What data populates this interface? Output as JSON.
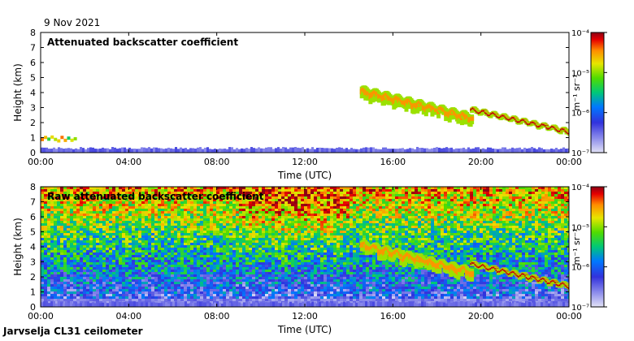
{
  "header": {
    "date": "9 Nov 2021",
    "station": "Jarvselja CL31 ceilometer"
  },
  "chart_data": [
    {
      "type": "heatmap",
      "title": "Attenuated backscatter coefficient",
      "xlabel": "Time (UTC)",
      "ylabel": "Height (km)",
      "x_tick_labels": [
        "00:00",
        "04:00",
        "08:00",
        "12:00",
        "16:00",
        "20:00",
        "00:00"
      ],
      "y_tick_labels": [
        "0",
        "1",
        "2",
        "3",
        "4",
        "5",
        "6",
        "7",
        "8"
      ],
      "xlim": [
        "00:00",
        "24:00"
      ],
      "ylim": [
        0,
        8
      ],
      "features": [
        {
          "kind": "cloud_layer",
          "time_start": "14:30",
          "time_end": "19:30",
          "height_start_km": 4.4,
          "height_end_km": 2.6
        },
        {
          "kind": "descending_cloud_layer",
          "time_start": "19:30",
          "time_end": "24:00",
          "height_start_km": 3.0,
          "height_end_km": 1.5
        },
        {
          "kind": "surface_layer",
          "height_km": 0.3,
          "time_start": "00:00",
          "time_end": "24:00"
        },
        {
          "kind": "low_cloud",
          "time_start": "00:00",
          "time_end": "01:30",
          "height_km": 1.0
        }
      ],
      "colorbar": {
        "label": "m⁻¹ sr⁻¹",
        "scale": "log",
        "range": [
          1e-07,
          0.0001
        ],
        "tick_labels": [
          "10⁻⁴",
          "10⁻⁵",
          "10⁻⁶",
          "10⁻⁷"
        ]
      }
    },
    {
      "type": "heatmap",
      "title": "Raw attenuated backscatter coefficient",
      "xlabel": "Time (UTC)",
      "ylabel": "Height (km)",
      "x_tick_labels": [
        "00:00",
        "04:00",
        "08:00",
        "12:00",
        "16:00",
        "20:00",
        "00:00"
      ],
      "y_tick_labels": [
        "0",
        "1",
        "2",
        "3",
        "4",
        "5",
        "6",
        "7",
        "8"
      ],
      "xlim": [
        "00:00",
        "24:00"
      ],
      "ylim": [
        0,
        8
      ],
      "features": [
        {
          "kind": "noise_background",
          "time_start": "00:00",
          "time_end": "24:00"
        },
        {
          "kind": "cloud_layer",
          "time_start": "14:30",
          "time_end": "19:30",
          "height_start_km": 4.4,
          "height_end_km": 2.6
        },
        {
          "kind": "descending_cloud_layer",
          "time_start": "19:30",
          "time_end": "24:00",
          "height_start_km": 3.0,
          "height_end_km": 1.5
        },
        {
          "kind": "surface_layer",
          "height_km": 0.3,
          "time_start": "00:00",
          "time_end": "24:00"
        }
      ],
      "colorbar": {
        "label": "m⁻¹ sr⁻¹",
        "scale": "log",
        "range": [
          1e-07,
          0.0001
        ],
        "tick_labels": [
          "10⁻⁴",
          "10⁻⁵",
          "10⁻⁶",
          "10⁻⁷"
        ]
      }
    }
  ]
}
